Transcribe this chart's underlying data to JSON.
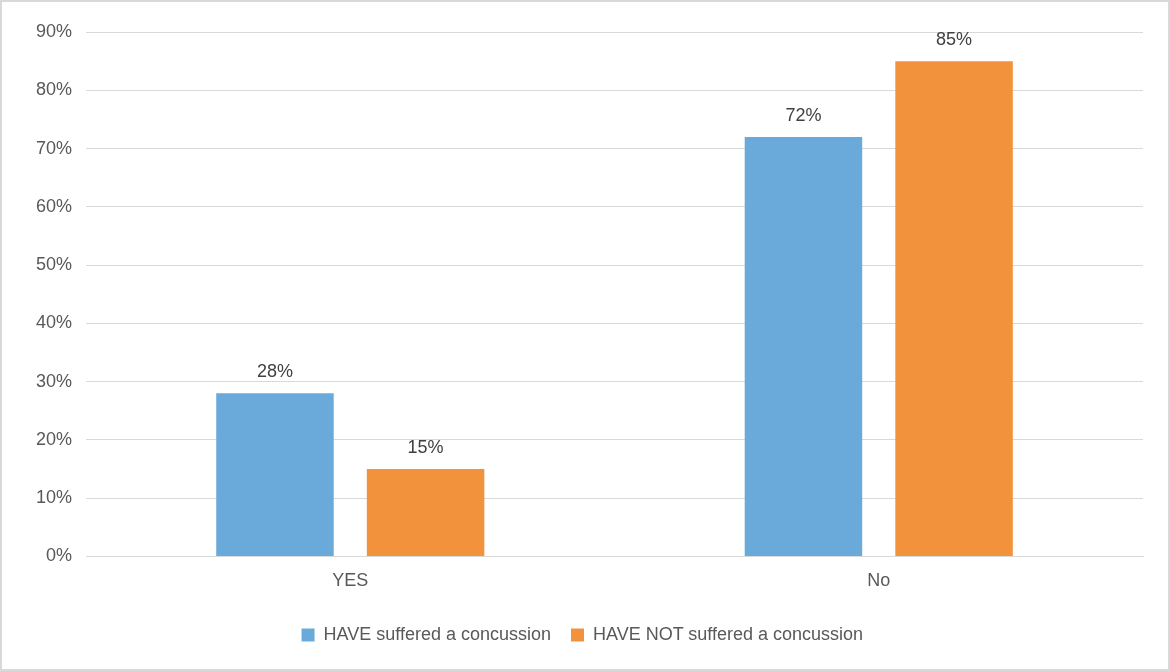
{
  "chart_data": {
    "type": "bar",
    "categories": [
      "YES",
      "No"
    ],
    "series": [
      {
        "name": "HAVE suffered a concussion",
        "color": "#6aaadb",
        "values": [
          28,
          72
        ],
        "value_labels": [
          "28%",
          "72%"
        ]
      },
      {
        "name": "HAVE NOT suffered a concussion",
        "color": "#f3923c",
        "values": [
          15,
          85
        ],
        "value_labels": [
          "15%",
          "85%"
        ]
      }
    ],
    "ylim": [
      0,
      90
    ],
    "yticks": [
      {
        "value": 0,
        "label": "0%"
      },
      {
        "value": 10,
        "label": "10%"
      },
      {
        "value": 20,
        "label": "20%"
      },
      {
        "value": 30,
        "label": "30%"
      },
      {
        "value": 40,
        "label": "40%"
      },
      {
        "value": 50,
        "label": "50%"
      },
      {
        "value": 60,
        "label": "60%"
      },
      {
        "value": 70,
        "label": "70%"
      },
      {
        "value": 80,
        "label": "80%"
      },
      {
        "value": 90,
        "label": "90%"
      }
    ],
    "grid": "y",
    "legend": "bottom"
  }
}
